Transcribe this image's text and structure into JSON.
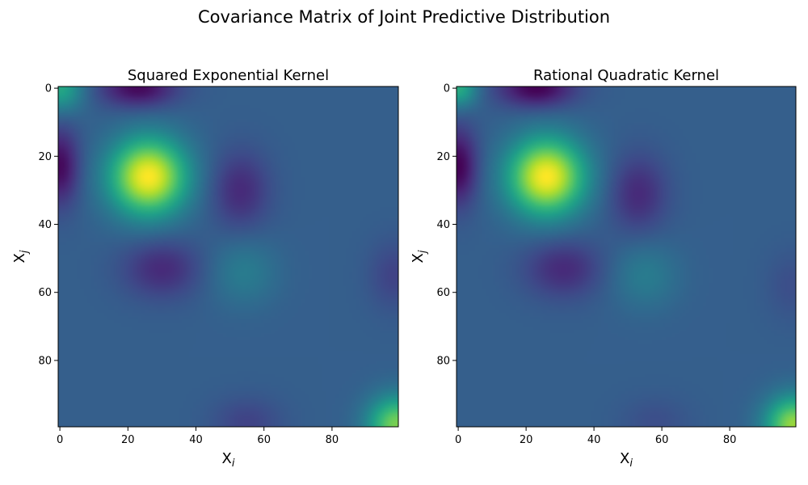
{
  "figure": {
    "title": "Covariance Matrix of Joint Predictive Distribution"
  },
  "chart_data": [
    {
      "type": "heatmap",
      "title": "Squared Exponential Kernel",
      "xlabel": "X_i",
      "ylabel": "X_j",
      "xlabel_main": "X",
      "xlabel_sub": "i",
      "ylabel_main": "X",
      "ylabel_sub": "j",
      "colormap": "viridis",
      "n": 100,
      "xlim": [
        -0.5,
        99.5
      ],
      "ylim": [
        99.5,
        -0.5
      ],
      "xticks": [
        0,
        20,
        40,
        60,
        80
      ],
      "yticks": [
        0,
        20,
        40,
        60,
        80
      ],
      "xtick_labels": [
        "0",
        "20",
        "40",
        "60",
        "80"
      ],
      "ytick_labels": [
        "0",
        "20",
        "40",
        "60",
        "80"
      ],
      "background_value": 0.3,
      "blobs": [
        {
          "x": 26,
          "y": 26,
          "amp": 0.7,
          "sx": 8,
          "sy": 8
        },
        {
          "x": 0,
          "y": 0,
          "amp": 0.3,
          "sx": 5,
          "sy": 5
        },
        {
          "x": 99,
          "y": 99,
          "amp": 0.5,
          "sx": 6,
          "sy": 6
        },
        {
          "x": 54,
          "y": 54,
          "amp": 0.12,
          "sx": 7,
          "sy": 7
        },
        {
          "x": 23,
          "y": 0,
          "amp": -0.28,
          "sx": 8,
          "sy": 4
        },
        {
          "x": 0,
          "y": 23,
          "amp": -0.28,
          "sx": 4,
          "sy": 8
        },
        {
          "x": 30,
          "y": 53,
          "amp": -0.18,
          "sx": 8,
          "sy": 6
        },
        {
          "x": 53,
          "y": 30,
          "amp": -0.18,
          "sx": 6,
          "sy": 8
        },
        {
          "x": 55,
          "y": 98,
          "amp": -0.1,
          "sx": 7,
          "sy": 5
        },
        {
          "x": 98,
          "y": 55,
          "amp": -0.1,
          "sx": 5,
          "sy": 7
        }
      ]
    },
    {
      "type": "heatmap",
      "title": "Rational Quadratic Kernel",
      "xlabel": "X_i",
      "ylabel": "X_j",
      "xlabel_main": "X",
      "xlabel_sub": "i",
      "ylabel_main": "X",
      "ylabel_sub": "j",
      "colormap": "viridis",
      "n": 100,
      "xlim": [
        -0.5,
        99.5
      ],
      "ylim": [
        99.5,
        -0.5
      ],
      "xticks": [
        0,
        20,
        40,
        60,
        80
      ],
      "yticks": [
        0,
        20,
        40,
        60,
        80
      ],
      "xtick_labels": [
        "0",
        "20",
        "40",
        "60",
        "80"
      ],
      "ytick_labels": [
        "0",
        "20",
        "40",
        "60",
        "80"
      ],
      "background_value": 0.3,
      "blobs": [
        {
          "x": 26,
          "y": 26,
          "amp": 0.7,
          "sx": 8,
          "sy": 8
        },
        {
          "x": 0,
          "y": 0,
          "amp": 0.32,
          "sx": 4,
          "sy": 4
        },
        {
          "x": 99,
          "y": 99,
          "amp": 0.55,
          "sx": 6,
          "sy": 6
        },
        {
          "x": 55,
          "y": 55,
          "amp": 0.12,
          "sx": 7,
          "sy": 7
        },
        {
          "x": 23,
          "y": 0,
          "amp": -0.3,
          "sx": 8,
          "sy": 4
        },
        {
          "x": 0,
          "y": 23,
          "amp": -0.3,
          "sx": 4,
          "sy": 8
        },
        {
          "x": 31,
          "y": 53,
          "amp": -0.18,
          "sx": 8,
          "sy": 6
        },
        {
          "x": 53,
          "y": 31,
          "amp": -0.18,
          "sx": 6,
          "sy": 8
        },
        {
          "x": 58,
          "y": 98,
          "amp": -0.06,
          "sx": 7,
          "sy": 5
        },
        {
          "x": 98,
          "y": 58,
          "amp": -0.06,
          "sx": 5,
          "sy": 7
        }
      ]
    }
  ]
}
